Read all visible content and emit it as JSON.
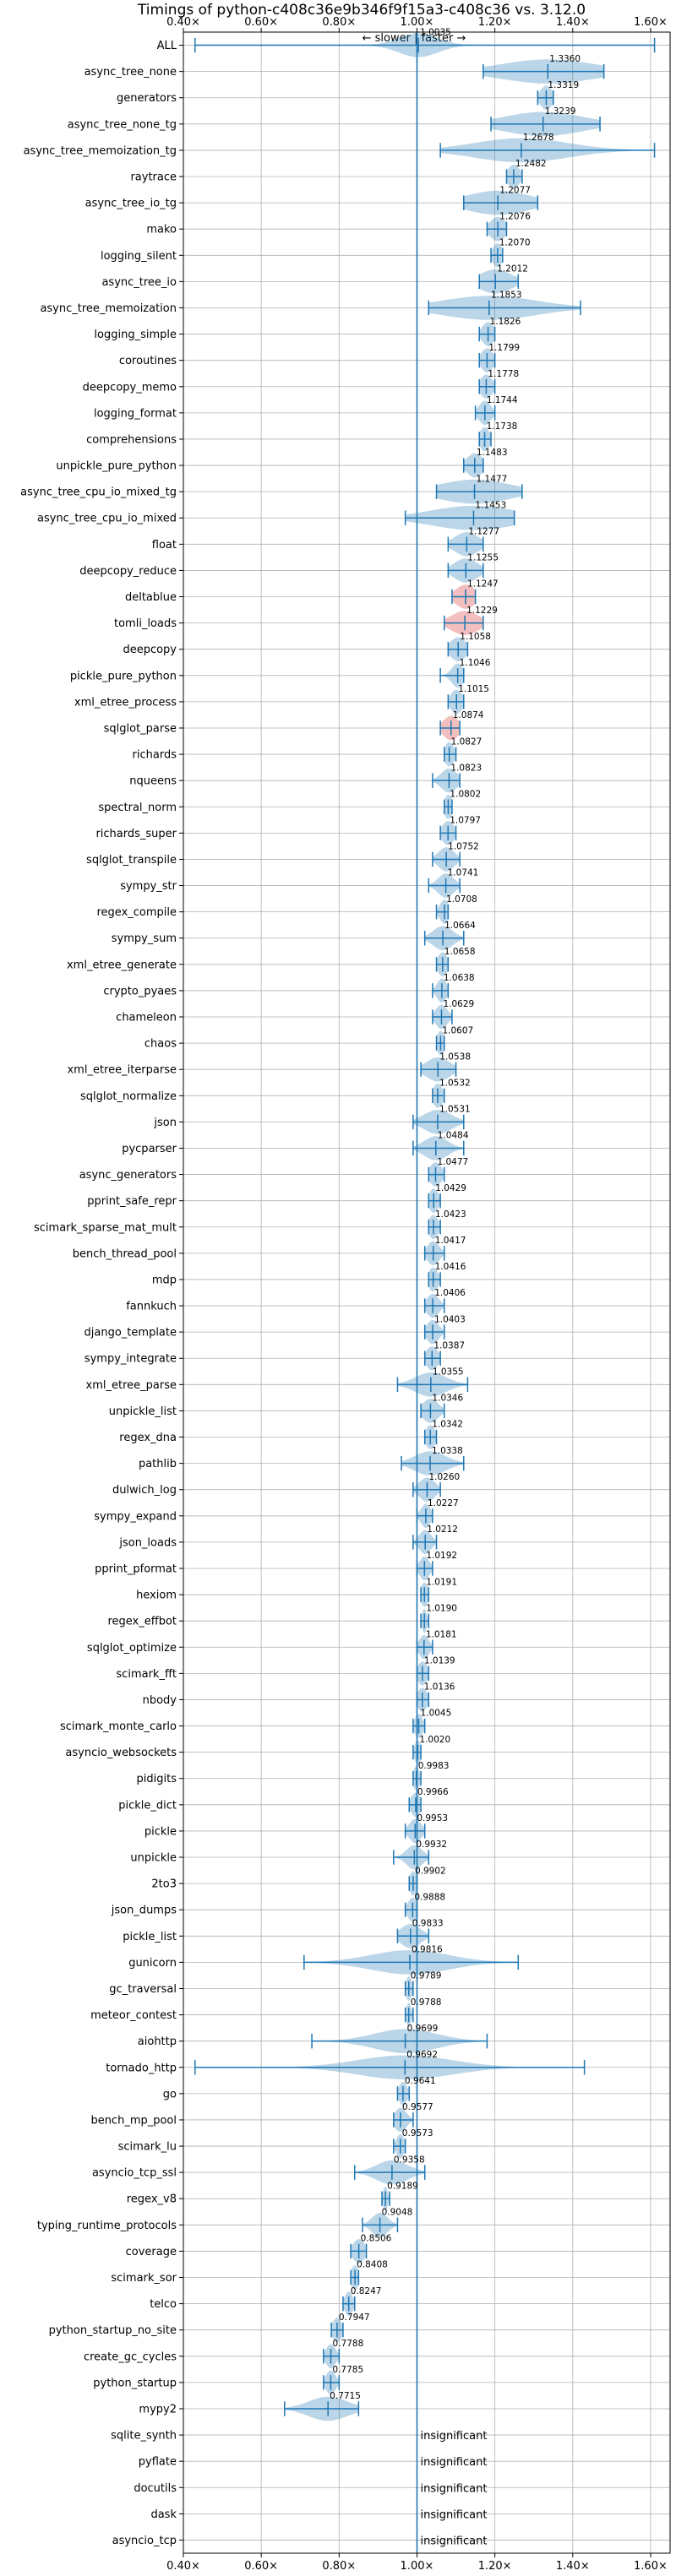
{
  "chart_data": {
    "type": "violin",
    "title": "Timings of python-c408c36e9b346f9f15a3-c408c36 vs. 3.12.0",
    "subtitle": "← slower | faster →",
    "xlim": [
      0.4,
      1.65
    ],
    "xticks": [
      0.4,
      0.6,
      0.8,
      1.0,
      1.2,
      1.4,
      1.6
    ],
    "xtick_labels": [
      "0.40×",
      "0.60×",
      "0.80×",
      "1.00×",
      "1.20×",
      "1.40×",
      "1.60×"
    ],
    "reference_line": 1.0,
    "grid": true,
    "colors": {
      "normal": "#1f77b4",
      "highlight": "#d62728",
      "text": "#000000",
      "grid": "#b0b0b0"
    },
    "insignificant_label": "insignificant",
    "benchmarks": [
      {
        "name": "ALL",
        "value": 1.0035,
        "label": "1.0035",
        "range": [
          0.43,
          1.61
        ],
        "spread": 0.05
      },
      {
        "name": "async_tree_none",
        "value": 1.336,
        "label": "1.3360",
        "range": [
          1.17,
          1.48
        ],
        "spread": 0.12
      },
      {
        "name": "generators",
        "value": 1.3319,
        "label": "1.3319",
        "range": [
          1.31,
          1.35
        ],
        "spread": 0.015
      },
      {
        "name": "async_tree_none_tg",
        "value": 1.3239,
        "label": "1.3239",
        "range": [
          1.19,
          1.47
        ],
        "spread": 0.1
      },
      {
        "name": "async_tree_memoization_tg",
        "value": 1.2678,
        "label": "1.2678",
        "range": [
          1.06,
          1.61
        ],
        "spread": 0.12
      },
      {
        "name": "raytrace",
        "value": 1.2482,
        "label": "1.2482",
        "range": [
          1.23,
          1.27
        ],
        "spread": 0.015
      },
      {
        "name": "async_tree_io_tg",
        "value": 1.2077,
        "label": "1.2077",
        "range": [
          1.12,
          1.31
        ],
        "spread": 0.08
      },
      {
        "name": "mako",
        "value": 1.2076,
        "label": "1.2076",
        "range": [
          1.18,
          1.23
        ],
        "spread": 0.02
      },
      {
        "name": "logging_silent",
        "value": 1.207,
        "label": "1.2070",
        "range": [
          1.19,
          1.22
        ],
        "spread": 0.012
      },
      {
        "name": "async_tree_io",
        "value": 1.2012,
        "label": "1.2012",
        "range": [
          1.16,
          1.26
        ],
        "spread": 0.04
      },
      {
        "name": "async_tree_memoization",
        "value": 1.1853,
        "label": "1.1853",
        "range": [
          1.03,
          1.42
        ],
        "spread": 0.12
      },
      {
        "name": "logging_simple",
        "value": 1.1826,
        "label": "1.1826",
        "range": [
          1.16,
          1.2
        ],
        "spread": 0.015
      },
      {
        "name": "coroutines",
        "value": 1.1799,
        "label": "1.1799",
        "range": [
          1.16,
          1.2
        ],
        "spread": 0.015
      },
      {
        "name": "deepcopy_memo",
        "value": 1.1778,
        "label": "1.1778",
        "range": [
          1.16,
          1.2
        ],
        "spread": 0.015
      },
      {
        "name": "logging_format",
        "value": 1.1744,
        "label": "1.1744",
        "range": [
          1.15,
          1.2
        ],
        "spread": 0.015
      },
      {
        "name": "comprehensions",
        "value": 1.1738,
        "label": "1.1738",
        "range": [
          1.16,
          1.19
        ],
        "spread": 0.012
      },
      {
        "name": "unpickle_pure_python",
        "value": 1.1483,
        "label": "1.1483",
        "range": [
          1.12,
          1.17
        ],
        "spread": 0.02
      },
      {
        "name": "async_tree_cpu_io_mixed_tg",
        "value": 1.1477,
        "label": "1.1477",
        "range": [
          1.05,
          1.27
        ],
        "spread": 0.09
      },
      {
        "name": "async_tree_cpu_io_mixed",
        "value": 1.1453,
        "label": "1.1453",
        "range": [
          0.97,
          1.25
        ],
        "spread": 0.11
      },
      {
        "name": "float",
        "value": 1.1277,
        "label": "1.1277",
        "range": [
          1.08,
          1.17
        ],
        "spread": 0.03
      },
      {
        "name": "deepcopy_reduce",
        "value": 1.1255,
        "label": "1.1255",
        "range": [
          1.08,
          1.17
        ],
        "spread": 0.03
      },
      {
        "name": "deltablue",
        "value": 1.1247,
        "label": "1.1247",
        "range": [
          1.09,
          1.15
        ],
        "spread": 0.025,
        "highlight": true
      },
      {
        "name": "tomli_loads",
        "value": 1.1229,
        "label": "1.1229",
        "range": [
          1.07,
          1.17
        ],
        "spread": 0.035,
        "highlight": true
      },
      {
        "name": "deepcopy",
        "value": 1.1058,
        "label": "1.1058",
        "range": [
          1.08,
          1.13
        ],
        "spread": 0.02
      },
      {
        "name": "pickle_pure_python",
        "value": 1.1046,
        "label": "1.1046",
        "range": [
          1.06,
          1.12
        ],
        "spread": 0.015
      },
      {
        "name": "xml_etree_process",
        "value": 1.1015,
        "label": "1.1015",
        "range": [
          1.08,
          1.12
        ],
        "spread": 0.015
      },
      {
        "name": "sqlglot_parse",
        "value": 1.0874,
        "label": "1.0874",
        "range": [
          1.06,
          1.11
        ],
        "spread": 0.02,
        "highlight": true
      },
      {
        "name": "richards",
        "value": 1.0827,
        "label": "1.0827",
        "range": [
          1.07,
          1.1
        ],
        "spread": 0.012
      },
      {
        "name": "nqueens",
        "value": 1.0823,
        "label": "1.0823",
        "range": [
          1.04,
          1.11
        ],
        "spread": 0.02
      },
      {
        "name": "spectral_norm",
        "value": 1.0802,
        "label": "1.0802",
        "range": [
          1.07,
          1.09
        ],
        "spread": 0.01
      },
      {
        "name": "richards_super",
        "value": 1.0797,
        "label": "1.0797",
        "range": [
          1.06,
          1.1
        ],
        "spread": 0.015
      },
      {
        "name": "sqlglot_transpile",
        "value": 1.0752,
        "label": "1.0752",
        "range": [
          1.04,
          1.11
        ],
        "spread": 0.02
      },
      {
        "name": "sympy_str",
        "value": 1.0741,
        "label": "1.0741",
        "range": [
          1.03,
          1.11
        ],
        "spread": 0.02
      },
      {
        "name": "regex_compile",
        "value": 1.0708,
        "label": "1.0708",
        "range": [
          1.05,
          1.08
        ],
        "spread": 0.012
      },
      {
        "name": "sympy_sum",
        "value": 1.0664,
        "label": "1.0664",
        "range": [
          1.02,
          1.12
        ],
        "spread": 0.025
      },
      {
        "name": "xml_etree_generate",
        "value": 1.0658,
        "label": "1.0658",
        "range": [
          1.05,
          1.08
        ],
        "spread": 0.012
      },
      {
        "name": "crypto_pyaes",
        "value": 1.0638,
        "label": "1.0638",
        "range": [
          1.04,
          1.08
        ],
        "spread": 0.012
      },
      {
        "name": "chameleon",
        "value": 1.0629,
        "label": "1.0629",
        "range": [
          1.04,
          1.09
        ],
        "spread": 0.015
      },
      {
        "name": "chaos",
        "value": 1.0607,
        "label": "1.0607",
        "range": [
          1.05,
          1.07
        ],
        "spread": 0.01
      },
      {
        "name": "xml_etree_iterparse",
        "value": 1.0538,
        "label": "1.0538",
        "range": [
          1.01,
          1.1
        ],
        "spread": 0.03
      },
      {
        "name": "sqlglot_normalize",
        "value": 1.0532,
        "label": "1.0532",
        "range": [
          1.04,
          1.07
        ],
        "spread": 0.012
      },
      {
        "name": "json",
        "value": 1.0531,
        "label": "1.0531",
        "range": [
          0.99,
          1.12
        ],
        "spread": 0.035
      },
      {
        "name": "pycparser",
        "value": 1.0484,
        "label": "1.0484",
        "range": [
          0.99,
          1.12
        ],
        "spread": 0.03
      },
      {
        "name": "async_generators",
        "value": 1.0477,
        "label": "1.0477",
        "range": [
          1.03,
          1.07
        ],
        "spread": 0.015
      },
      {
        "name": "pprint_safe_repr",
        "value": 1.0429,
        "label": "1.0429",
        "range": [
          1.03,
          1.06
        ],
        "spread": 0.012
      },
      {
        "name": "scimark_sparse_mat_mult",
        "value": 1.0423,
        "label": "1.0423",
        "range": [
          1.03,
          1.06
        ],
        "spread": 0.012
      },
      {
        "name": "bench_thread_pool",
        "value": 1.0417,
        "label": "1.0417",
        "range": [
          1.02,
          1.07
        ],
        "spread": 0.015
      },
      {
        "name": "mdp",
        "value": 1.0416,
        "label": "1.0416",
        "range": [
          1.03,
          1.06
        ],
        "spread": 0.012
      },
      {
        "name": "fannkuch",
        "value": 1.0406,
        "label": "1.0406",
        "range": [
          1.02,
          1.07
        ],
        "spread": 0.015
      },
      {
        "name": "django_template",
        "value": 1.0403,
        "label": "1.0403",
        "range": [
          1.02,
          1.07
        ],
        "spread": 0.015
      },
      {
        "name": "sympy_integrate",
        "value": 1.0387,
        "label": "1.0387",
        "range": [
          1.02,
          1.06
        ],
        "spread": 0.015
      },
      {
        "name": "xml_etree_parse",
        "value": 1.0355,
        "label": "1.0355",
        "range": [
          0.95,
          1.13
        ],
        "spread": 0.04
      },
      {
        "name": "unpickle_list",
        "value": 1.0346,
        "label": "1.0346",
        "range": [
          1.01,
          1.07
        ],
        "spread": 0.02
      },
      {
        "name": "regex_dna",
        "value": 1.0342,
        "label": "1.0342",
        "range": [
          1.02,
          1.05
        ],
        "spread": 0.012
      },
      {
        "name": "pathlib",
        "value": 1.0338,
        "label": "1.0338",
        "range": [
          0.96,
          1.12
        ],
        "spread": 0.04
      },
      {
        "name": "dulwich_log",
        "value": 1.026,
        "label": "1.0260",
        "range": [
          0.99,
          1.06
        ],
        "spread": 0.02
      },
      {
        "name": "sympy_expand",
        "value": 1.0227,
        "label": "1.0227",
        "range": [
          1.0,
          1.04
        ],
        "spread": 0.012
      },
      {
        "name": "json_loads",
        "value": 1.0212,
        "label": "1.0212",
        "range": [
          0.99,
          1.05
        ],
        "spread": 0.015
      },
      {
        "name": "pprint_pformat",
        "value": 1.0192,
        "label": "1.0192",
        "range": [
          1.0,
          1.04
        ],
        "spread": 0.012
      },
      {
        "name": "hexiom",
        "value": 1.0191,
        "label": "1.0191",
        "range": [
          1.01,
          1.03
        ],
        "spread": 0.01
      },
      {
        "name": "regex_effbot",
        "value": 1.019,
        "label": "1.0190",
        "range": [
          1.01,
          1.03
        ],
        "spread": 0.006
      },
      {
        "name": "sqlglot_optimize",
        "value": 1.0181,
        "label": "1.0181",
        "range": [
          1.0,
          1.04
        ],
        "spread": 0.012
      },
      {
        "name": "scimark_fft",
        "value": 1.0139,
        "label": "1.0139",
        "range": [
          1.0,
          1.03
        ],
        "spread": 0.012
      },
      {
        "name": "nbody",
        "value": 1.0136,
        "label": "1.0136",
        "range": [
          1.0,
          1.03
        ],
        "spread": 0.012
      },
      {
        "name": "scimark_monte_carlo",
        "value": 1.0045,
        "label": "1.0045",
        "range": [
          0.99,
          1.02
        ],
        "spread": 0.01
      },
      {
        "name": "asyncio_websockets",
        "value": 1.002,
        "label": "1.0020",
        "range": [
          0.99,
          1.01
        ],
        "spread": 0.008
      },
      {
        "name": "pidigits",
        "value": 0.9983,
        "label": "0.9983",
        "range": [
          0.99,
          1.01
        ],
        "spread": 0.008
      },
      {
        "name": "pickle_dict",
        "value": 0.9966,
        "label": "0.9966",
        "range": [
          0.98,
          1.01
        ],
        "spread": 0.012
      },
      {
        "name": "pickle",
        "value": 0.9953,
        "label": "0.9953",
        "range": [
          0.97,
          1.02
        ],
        "spread": 0.015
      },
      {
        "name": "unpickle",
        "value": 0.9932,
        "label": "0.9932",
        "range": [
          0.94,
          1.03
        ],
        "spread": 0.02
      },
      {
        "name": "2to3",
        "value": 0.9902,
        "label": "0.9902",
        "range": [
          0.98,
          1.0
        ],
        "spread": 0.01
      },
      {
        "name": "json_dumps",
        "value": 0.9888,
        "label": "0.9888",
        "range": [
          0.97,
          1.0
        ],
        "spread": 0.012
      },
      {
        "name": "pickle_list",
        "value": 0.9833,
        "label": "0.9833",
        "range": [
          0.95,
          1.03
        ],
        "spread": 0.025
      },
      {
        "name": "gunicorn",
        "value": 0.9816,
        "label": "0.9816",
        "range": [
          0.71,
          1.26
        ],
        "spread": 0.1
      },
      {
        "name": "gc_traversal",
        "value": 0.9789,
        "label": "0.9789",
        "range": [
          0.97,
          0.99
        ],
        "spread": 0.008
      },
      {
        "name": "meteor_contest",
        "value": 0.9788,
        "label": "0.9788",
        "range": [
          0.97,
          0.99
        ],
        "spread": 0.006
      },
      {
        "name": "aiohttp",
        "value": 0.9699,
        "label": "0.9699",
        "range": [
          0.73,
          1.18
        ],
        "spread": 0.08
      },
      {
        "name": "tornado_http",
        "value": 0.9692,
        "label": "0.9692",
        "range": [
          0.43,
          1.43
        ],
        "spread": 0.12
      },
      {
        "name": "go",
        "value": 0.9641,
        "label": "0.9641",
        "range": [
          0.95,
          0.98
        ],
        "spread": 0.01
      },
      {
        "name": "bench_mp_pool",
        "value": 0.9577,
        "label": "0.9577",
        "range": [
          0.94,
          0.99
        ],
        "spread": 0.015
      },
      {
        "name": "scimark_lu",
        "value": 0.9573,
        "label": "0.9573",
        "range": [
          0.94,
          0.97
        ],
        "spread": 0.01
      },
      {
        "name": "asyncio_tcp_ssl",
        "value": 0.9358,
        "label": "0.9358",
        "range": [
          0.84,
          1.02
        ],
        "spread": 0.04
      },
      {
        "name": "regex_v8",
        "value": 0.9189,
        "label": "0.9189",
        "range": [
          0.91,
          0.93
        ],
        "spread": 0.006
      },
      {
        "name": "typing_runtime_protocols",
        "value": 0.9048,
        "label": "0.9048",
        "range": [
          0.86,
          0.95
        ],
        "spread": 0.02
      },
      {
        "name": "coverage",
        "value": 0.8506,
        "label": "0.8506",
        "range": [
          0.83,
          0.87
        ],
        "spread": 0.015
      },
      {
        "name": "scimark_sor",
        "value": 0.8408,
        "label": "0.8408",
        "range": [
          0.83,
          0.85
        ],
        "spread": 0.01
      },
      {
        "name": "telco",
        "value": 0.8247,
        "label": "0.8247",
        "range": [
          0.81,
          0.84
        ],
        "spread": 0.01
      },
      {
        "name": "python_startup_no_site",
        "value": 0.7947,
        "label": "0.7947",
        "range": [
          0.78,
          0.81
        ],
        "spread": 0.012
      },
      {
        "name": "create_gc_cycles",
        "value": 0.7788,
        "label": "0.7788",
        "range": [
          0.76,
          0.8
        ],
        "spread": 0.012
      },
      {
        "name": "python_startup",
        "value": 0.7785,
        "label": "0.7785",
        "range": [
          0.76,
          0.8
        ],
        "spread": 0.012
      },
      {
        "name": "mypy2",
        "value": 0.7715,
        "label": "0.7715",
        "range": [
          0.66,
          0.85
        ],
        "spread": 0.05
      },
      {
        "name": "sqlite_synth",
        "insignificant": true
      },
      {
        "name": "pyflate",
        "insignificant": true
      },
      {
        "name": "docutils",
        "insignificant": true
      },
      {
        "name": "dask",
        "insignificant": true
      },
      {
        "name": "asyncio_tcp",
        "insignificant": true
      }
    ]
  }
}
